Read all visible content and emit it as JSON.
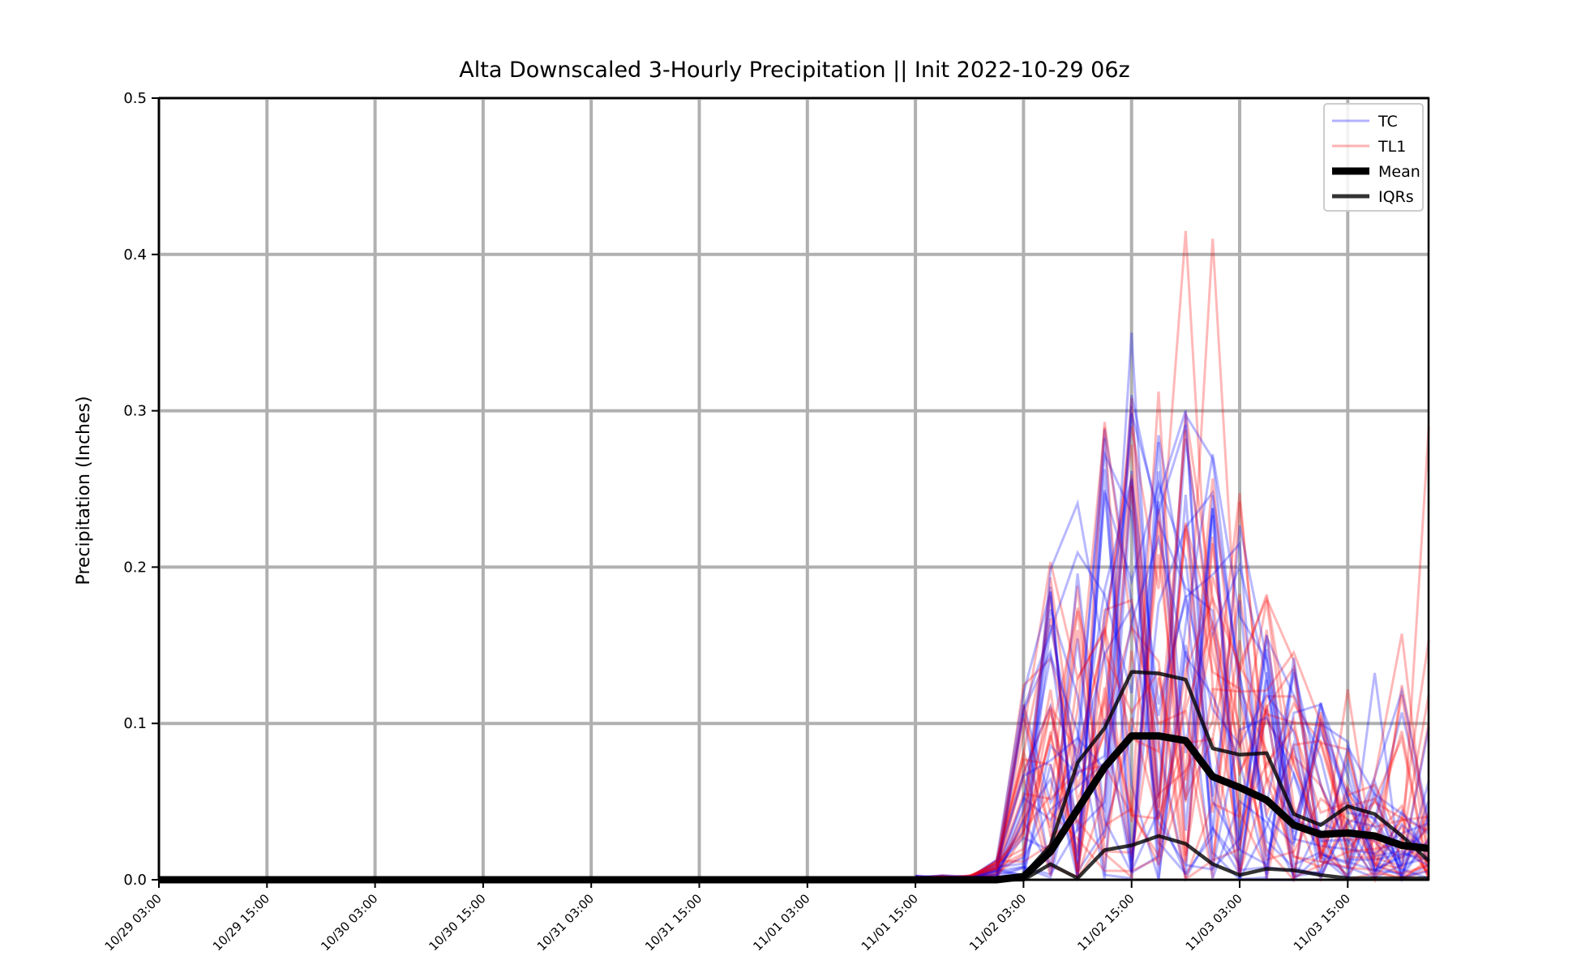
{
  "chart_data": {
    "type": "line",
    "title": "Alta Downscaled 3-Hourly Precipitation || Init 2022-10-29 06z",
    "xlabel": "",
    "ylabel": "Precipitation (Inches)",
    "ylim": [
      0,
      0.5
    ],
    "y_ticks": [
      "0.0",
      "0.1",
      "0.2",
      "0.3",
      "0.4",
      "0.5"
    ],
    "x_tick_labels": [
      "10/29 03:00",
      "10/29 15:00",
      "10/30 03:00",
      "10/30 15:00",
      "10/31 03:00",
      "10/31 15:00",
      "11/01 03:00",
      "11/01 15:00",
      "11/02 03:00",
      "11/02 15:00",
      "11/03 03:00",
      "11/03 15:00"
    ],
    "x_time_steps": [
      "10/29 03:00",
      "10/29 06:00",
      "10/29 09:00",
      "10/29 12:00",
      "10/29 15:00",
      "10/29 18:00",
      "10/29 21:00",
      "10/30 00:00",
      "10/30 03:00",
      "10/30 06:00",
      "10/30 09:00",
      "10/30 12:00",
      "10/30 15:00",
      "10/30 18:00",
      "10/30 21:00",
      "10/31 00:00",
      "10/31 03:00",
      "10/31 06:00",
      "10/31 09:00",
      "10/31 12:00",
      "10/31 15:00",
      "10/31 18:00",
      "10/31 21:00",
      "11/01 00:00",
      "11/01 03:00",
      "11/01 06:00",
      "11/01 09:00",
      "11/01 12:00",
      "11/01 15:00",
      "11/01 18:00",
      "11/01 21:00",
      "11/02 00:00",
      "11/02 03:00",
      "11/02 06:00",
      "11/02 09:00",
      "11/02 12:00",
      "11/02 15:00",
      "11/02 18:00",
      "11/02 21:00",
      "11/03 00:00",
      "11/03 03:00",
      "11/03 06:00",
      "11/03 09:00",
      "11/03 12:00",
      "11/03 15:00",
      "11/03 18:00",
      "11/03 21:00",
      "11/04 00:00"
    ],
    "grid": true,
    "legend_position": "top-right",
    "legend": [
      {
        "label": "TC",
        "color": "#0000ff",
        "style": "thin-alpha"
      },
      {
        "label": "TL1",
        "color": "#ff0000",
        "style": "thin-alpha"
      },
      {
        "label": "Mean",
        "color": "#000000",
        "style": "thick"
      },
      {
        "label": "IQRs",
        "color": "#000000",
        "style": "medium-alpha"
      }
    ],
    "series": [
      {
        "name": "Mean",
        "color": "#000000",
        "values": [
          0,
          0,
          0,
          0,
          0,
          0,
          0,
          0,
          0,
          0,
          0,
          0,
          0,
          0,
          0,
          0,
          0,
          0,
          0,
          0,
          0,
          0,
          0,
          0,
          0,
          0,
          0,
          0,
          0,
          0,
          0,
          0,
          0.002,
          0.018,
          0.045,
          0.072,
          0.092,
          0.092,
          0.089,
          0.066,
          0.059,
          0.051,
          0.035,
          0.029,
          0.03,
          0.028,
          0.022,
          0.02
        ]
      },
      {
        "name": "IQRs",
        "color": "#000000",
        "values": [
          0,
          0,
          0,
          0,
          0,
          0,
          0,
          0,
          0,
          0,
          0,
          0,
          0,
          0,
          0,
          0,
          0,
          0,
          0,
          0,
          0,
          0,
          0,
          0,
          0,
          0,
          0,
          0,
          0,
          0,
          0,
          0,
          0.003,
          0.022,
          0.075,
          0.097,
          0.133,
          0.132,
          0.128,
          0.084,
          0.08,
          0.081,
          0.042,
          0.035,
          0.047,
          0.042,
          0.028,
          0.012
        ]
      },
      {
        "name": "IQRs",
        "color": "#000000",
        "values": [
          0,
          0,
          0,
          0,
          0,
          0,
          0,
          0,
          0,
          0,
          0,
          0,
          0,
          0,
          0,
          0,
          0,
          0,
          0,
          0,
          0,
          0,
          0,
          0,
          0,
          0,
          0,
          0,
          0,
          0,
          0,
          0,
          0,
          0.01,
          0.001,
          0.019,
          0.022,
          0.028,
          0.023,
          0.01,
          0.003,
          0.007,
          0.006,
          0.003,
          0.001,
          0.001,
          0.001,
          0.001
        ]
      }
    ]
  }
}
